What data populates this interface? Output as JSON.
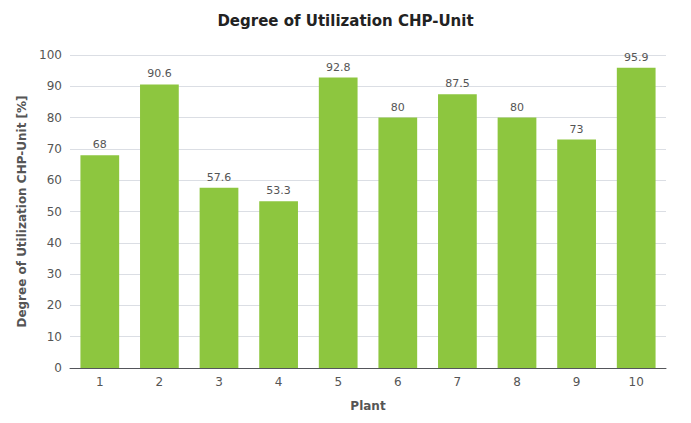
{
  "chart_data": {
    "type": "bar",
    "title": "Degree of Utilization CHP-Unit",
    "xlabel": "Plant",
    "ylabel": "Degree of Utilization CHP-Unit [%]",
    "categories": [
      "1",
      "2",
      "3",
      "4",
      "5",
      "6",
      "7",
      "8",
      "9",
      "10"
    ],
    "values": [
      68,
      90.6,
      57.6,
      53.3,
      92.8,
      80,
      87.5,
      80,
      73,
      95.9
    ],
    "color": "#8DC63F",
    "ylim": [
      0,
      100
    ],
    "yticks": [
      0,
      10,
      20,
      30,
      40,
      50,
      60,
      70,
      80,
      90,
      100
    ],
    "grid": true,
    "data_labels": true
  }
}
